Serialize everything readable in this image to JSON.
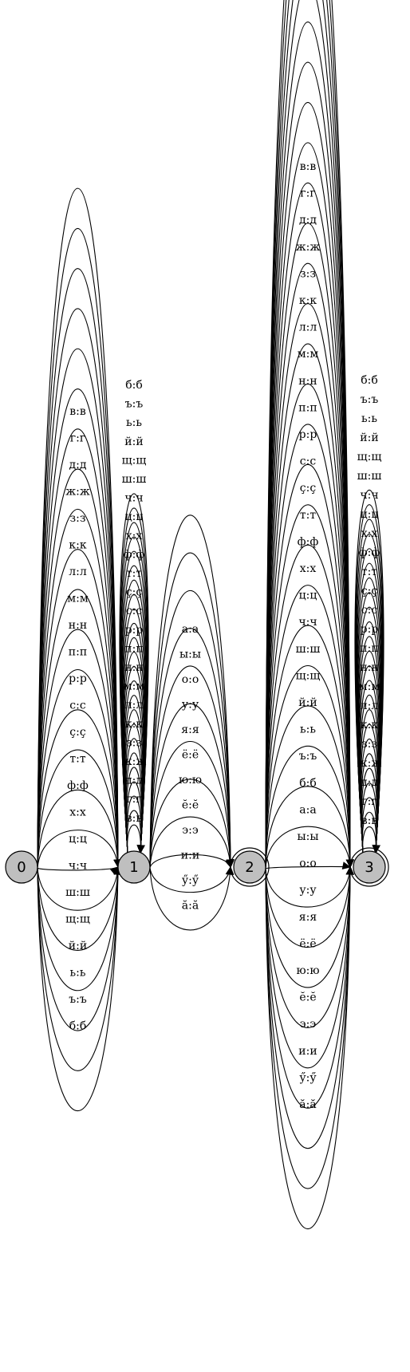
{
  "nodes": [
    {
      "id": "0",
      "label": "0",
      "final": false
    },
    {
      "id": "1",
      "label": "1",
      "final": false
    },
    {
      "id": "2",
      "label": "2",
      "final": true
    },
    {
      "id": "3",
      "label": "3",
      "final": true
    }
  ],
  "edges": {
    "e01": [
      "в:в",
      "г:г",
      "д:д",
      "ж:ж",
      "з:з",
      "к:к",
      "л:л",
      "м:м",
      "н:н",
      "п:п",
      "р:р",
      "с:с",
      "ç:ç",
      "т:т",
      "ф:ф",
      "х:х",
      "ц:ц",
      "ч:ч",
      "ш:ш",
      "щ:щ",
      "й:й",
      "ь:ь",
      "ъ:ъ",
      "б:б"
    ],
    "loop1": [
      "б:б",
      "ъ:ъ",
      "ь:ь",
      "й:й",
      "щ:щ",
      "ш:ш",
      "ч:ч",
      "ц:ц",
      "х:х",
      "ф:ф",
      "т:т",
      "ç:ç",
      "с:с",
      "р:р",
      "п:п",
      "н:н",
      "м:м",
      "л:л",
      "к:к",
      "з:з",
      "ж:ж",
      "д:д",
      "г:г",
      "в:в"
    ],
    "e12": [
      "а:а",
      "ы:ы",
      "о:о",
      "у:у",
      "я:я",
      "ё:ё",
      "ю:ю",
      "ĕ:ĕ",
      "э:э",
      "и:и",
      "ӳ:ӳ",
      "ă:ă"
    ],
    "e23": [
      "в:в",
      "г:г",
      "д:д",
      "ж:ж",
      "з:з",
      "к:к",
      "л:л",
      "м:м",
      "н:н",
      "п:п",
      "р:р",
      "с:с",
      "ç:ç",
      "т:т",
      "ф:ф",
      "х:х",
      "ц:ц",
      "ч:ч",
      "ш:ш",
      "щ:щ",
      "й:й",
      "ь:ь",
      "ъ:ъ",
      "б:б",
      "а:а",
      "ы:ы",
      "о:о",
      "у:у",
      "я:я",
      "ё:ё",
      "ю:ю",
      "ĕ:ĕ",
      "э:э",
      "и:и",
      "ӳ:ӳ",
      "ă:ă"
    ],
    "loop3": [
      "б:б",
      "ъ:ъ",
      "ь:ь",
      "й:й",
      "щ:щ",
      "ш:ш",
      "ч:ч",
      "ц:ц",
      "х:х",
      "ф:ф",
      "т:т",
      "ç:ç",
      "с:с",
      "р:р",
      "п:п",
      "н:н",
      "м:м",
      "л:л",
      "к:к",
      "з:з",
      "ж:ж",
      "д:д",
      "г:г",
      "в:в"
    ]
  }
}
